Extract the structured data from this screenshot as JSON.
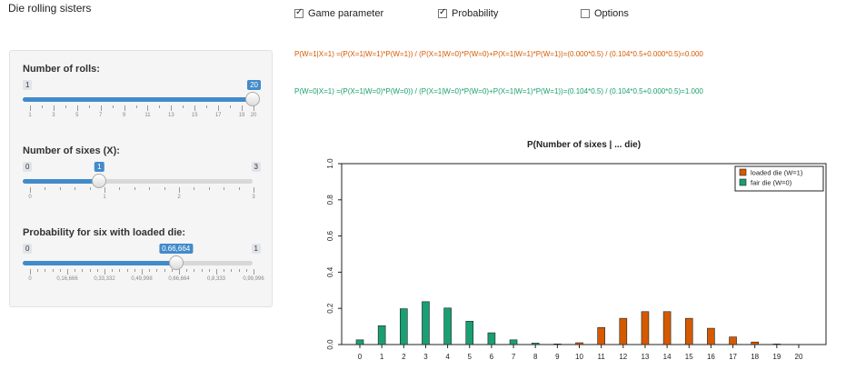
{
  "app_title": "Die rolling sisters",
  "toggles": [
    {
      "label": "Game parameter",
      "checked": true
    },
    {
      "label": "Probability",
      "checked": true
    },
    {
      "label": "Options",
      "checked": false
    }
  ],
  "sliders": {
    "rolls": {
      "label": "Number of rolls:",
      "min": "1",
      "max": "20",
      "value": "20",
      "fraction": 1.0,
      "ticks": [
        "1",
        "3",
        "5",
        "7",
        "9",
        "11",
        "13",
        "15",
        "17",
        "19",
        "20"
      ]
    },
    "sixes": {
      "label": "Number of sixes (X):",
      "min": "0",
      "max": "3",
      "value": "1",
      "fraction": 0.3333,
      "ticks": [
        "0",
        "1",
        "2",
        "3"
      ]
    },
    "prob": {
      "label": "Probability for six with loaded die:",
      "min": "0",
      "max": "1",
      "value": "0.66,664",
      "fraction": 0.66664,
      "ticks": [
        "0",
        "0,16,666",
        "0,33,332",
        "0,49,998",
        "0,66,664",
        "0,8,333",
        "0,99,996"
      ]
    }
  },
  "formulas": {
    "loaded": "P(W=1|X=1) =(P(X=1|W=1)*P(W=1)) / (P(X=1|W=0)*P(W=0)+P(X=1|W=1)*P(W=1))=(0.000*0.5) / (0.104*0.5+0.000*0.5)=0.000",
    "fair": "P(W=0|X=1) =(P(X=1|W=0)*P(W=0)) / (P(X=1|W=0)*P(W=0)+P(X=1|W=1)*P(W=1))=(0.104*0.5) / (0.104*0.5+0.000*0.5)=1.000"
  },
  "colors": {
    "loaded": "#d45a00",
    "fair": "#1a9e73",
    "accent": "#428bca"
  },
  "chart_data": {
    "type": "bar",
    "title": "P(Number of sixes | ... die)",
    "x": [
      0,
      1,
      2,
      3,
      4,
      5,
      6,
      7,
      8,
      9,
      10,
      11,
      12,
      13,
      14,
      15,
      16,
      17,
      18,
      19,
      20
    ],
    "ylim": [
      0,
      1.0
    ],
    "yticks": [
      "0.0",
      "0.2",
      "0.4",
      "0.6",
      "0.8",
      "1.0"
    ],
    "legend_position": "top-right",
    "series": [
      {
        "name": "loaded die (W=1)",
        "values": [
          0,
          0,
          0,
          0,
          0,
          0,
          0,
          0,
          0.001,
          0.003,
          0.01,
          0.094,
          0.145,
          0.182,
          0.182,
          0.145,
          0.09,
          0.042,
          0.014,
          0.003,
          0.0004
        ]
      },
      {
        "name": "fair die (W=0)",
        "values": [
          0.026,
          0.104,
          0.198,
          0.237,
          0.202,
          0.129,
          0.065,
          0.026,
          0.008,
          0.002,
          0,
          0,
          0,
          0,
          0,
          0,
          0,
          0,
          0,
          0,
          0
        ]
      }
    ]
  }
}
